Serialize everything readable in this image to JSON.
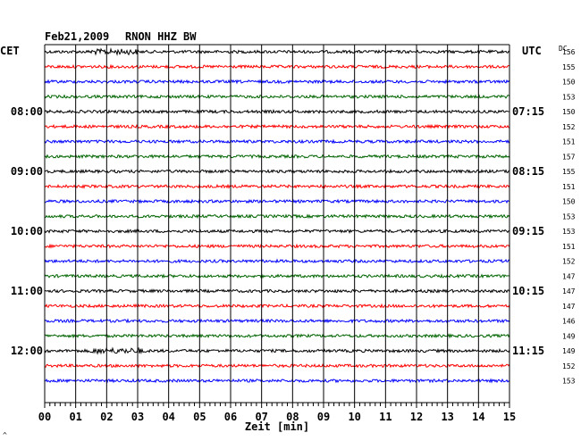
{
  "header": {
    "date": "Feb21,2009",
    "station": "RNON HHZ BW"
  },
  "left_axis_label": "CET",
  "right_axis_label": "UTC",
  "dc_label": "DC",
  "x_axis_label": "Zeit [min]",
  "corner_mark": "^",
  "colors": {
    "trace_cycle": [
      "#000000",
      "#ff0000",
      "#0000ff",
      "#006400"
    ],
    "grid": "#000000",
    "background": "#ffffff"
  },
  "chart_data": {
    "type": "line",
    "title": "Feb21,2009  RNON HHZ BW",
    "xlabel": "Zeit [min]",
    "x_ticks": [
      "00",
      "01",
      "02",
      "03",
      "04",
      "05",
      "06",
      "07",
      "08",
      "09",
      "10",
      "11",
      "12",
      "13",
      "14",
      "15"
    ],
    "xlim": [
      0,
      15
    ],
    "left_time_labels": [
      {
        "row": 4,
        "text": "08:00"
      },
      {
        "row": 8,
        "text": "09:00"
      },
      {
        "row": 12,
        "text": "10:00"
      },
      {
        "row": 16,
        "text": "11:00"
      },
      {
        "row": 20,
        "text": "12:00"
      }
    ],
    "right_time_labels": [
      {
        "row": 4,
        "text": "07:15"
      },
      {
        "row": 8,
        "text": "08:15"
      },
      {
        "row": 12,
        "text": "09:15"
      },
      {
        "row": 16,
        "text": "10:15"
      },
      {
        "row": 20,
        "text": "11:15"
      }
    ],
    "dc_offsets": [
      156,
      155,
      150,
      153,
      150,
      152,
      151,
      157,
      155,
      151,
      150,
      153,
      153,
      151,
      152,
      147,
      147,
      147,
      146,
      149,
      149,
      152,
      153
    ],
    "bursts": [
      {
        "row": 0,
        "start_min": 1.5,
        "end_min": 3.0
      },
      {
        "row": 20,
        "start_min": 1.5,
        "end_min": 3.2
      }
    ]
  }
}
